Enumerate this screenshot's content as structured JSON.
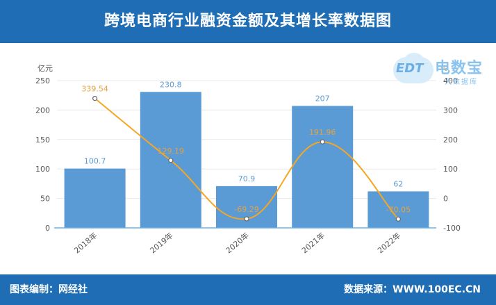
{
  "header": {
    "title": "跨境电商行业融资金额及其增长率数据图"
  },
  "footer": {
    "left": "图表编制：网经社",
    "right": "数据来源：WWW.100EC.CN"
  },
  "logo": {
    "main": "电数宝",
    "sub": "大数据库",
    "badge": "EDT"
  },
  "colors": {
    "bar": "#5b9bd5",
    "line": "#f5a623",
    "header": "#1f6db5",
    "axis_line": "#6ab0e8"
  },
  "chart_data": {
    "type": "bar",
    "categories": [
      "2018年",
      "2019年",
      "2020年",
      "2021年",
      "2022年"
    ],
    "left_axis": {
      "label": "亿元",
      "ticks": [
        0,
        50,
        100,
        150,
        200,
        250
      ],
      "ylim": [
        0,
        250
      ]
    },
    "right_axis": {
      "label": "%",
      "ticks": [
        -100,
        0,
        100,
        200,
        300,
        400
      ],
      "ylim": [
        -100,
        400
      ]
    },
    "series": [
      {
        "kind": "bar",
        "axis": "left",
        "values": [
          100.7,
          230.8,
          70.9,
          207,
          62
        ],
        "labels": [
          "100.7",
          "230.8",
          "70.9",
          "207",
          "62"
        ]
      },
      {
        "kind": "line",
        "axis": "right",
        "values": [
          339.54,
          129.19,
          -69.29,
          191.96,
          -70.05
        ],
        "labels": [
          "339.54",
          "129.19",
          "-69.29",
          "191.96",
          "-70.05"
        ]
      }
    ],
    "grid": true
  }
}
